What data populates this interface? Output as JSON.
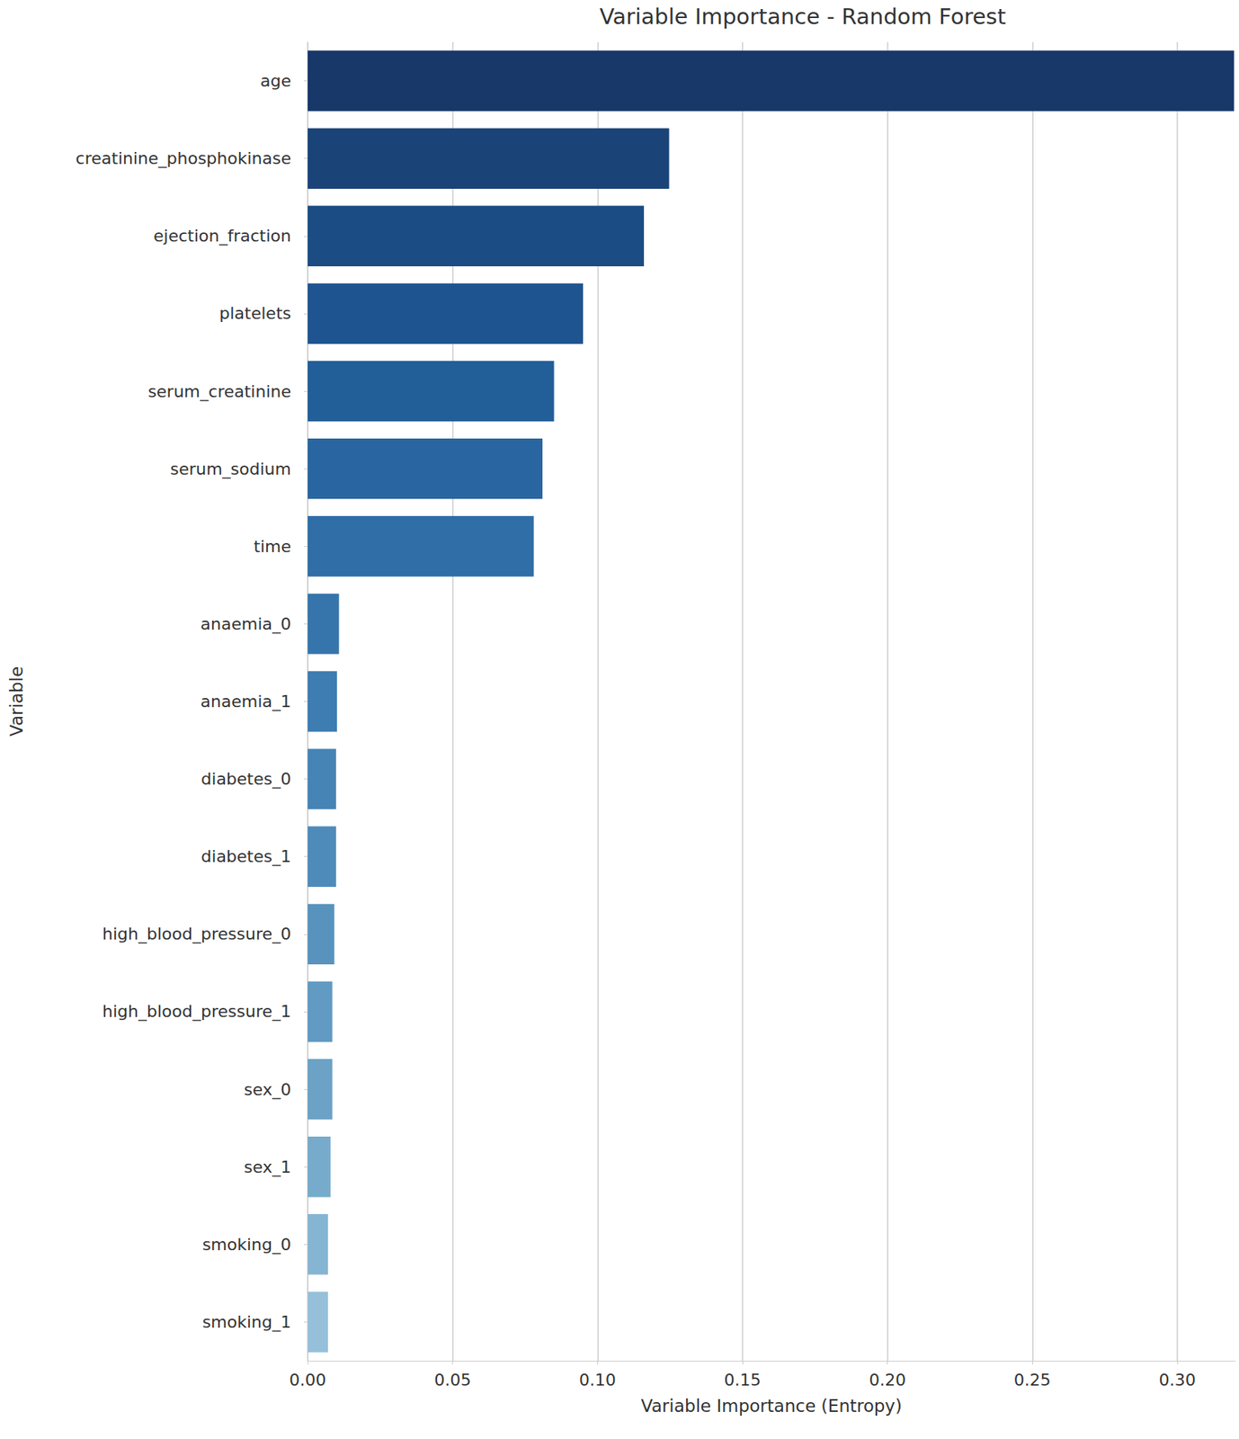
{
  "chart_data": {
    "type": "bar",
    "orientation": "horizontal",
    "title": "Variable Importance - Random Forest",
    "x_label": "Variable Importance (Entropy)",
    "y_label": "Variable",
    "categories": [
      "age",
      "creatinine_phosphokinase",
      "ejection_fraction",
      "platelets",
      "serum_creatinine",
      "serum_sodium",
      "time",
      "anaemia_0",
      "anaemia_1",
      "diabetes_0",
      "diabetes_1",
      "high_blood_pressure_0",
      "high_blood_pressure_1",
      "sex_0",
      "sex_1",
      "smoking_0",
      "smoking_1"
    ],
    "values": [
      0.3196,
      0.1247,
      0.116,
      0.095,
      0.085,
      0.081,
      0.078,
      0.0108,
      0.0101,
      0.0098,
      0.0098,
      0.0092,
      0.0085,
      0.0085,
      0.0079,
      0.007,
      0.007
    ],
    "colors": [
      "#18386a",
      "#1a4378",
      "#1b4c84",
      "#1e5490",
      "#225e98",
      "#2965a0",
      "#2f6ea6",
      "#3675ab",
      "#3d7db1",
      "#4684b6",
      "#4f8bba",
      "#5893be",
      "#619ac2",
      "#6ba2c6",
      "#77abcc",
      "#86b5d3",
      "#96c0da"
    ],
    "xlim": [
      0,
      0.32
    ],
    "xticks": [
      {
        "value": 0,
        "label": "0.00"
      },
      {
        "value": 0.05,
        "label": "0.05"
      },
      {
        "value": 0.1,
        "label": "0.10"
      },
      {
        "value": 0.15,
        "label": "0.15"
      },
      {
        "value": 0.2,
        "label": "0.20"
      },
      {
        "value": 0.25,
        "label": "0.25"
      },
      {
        "value": 0.3,
        "label": "0.30"
      }
    ],
    "grid": true
  }
}
